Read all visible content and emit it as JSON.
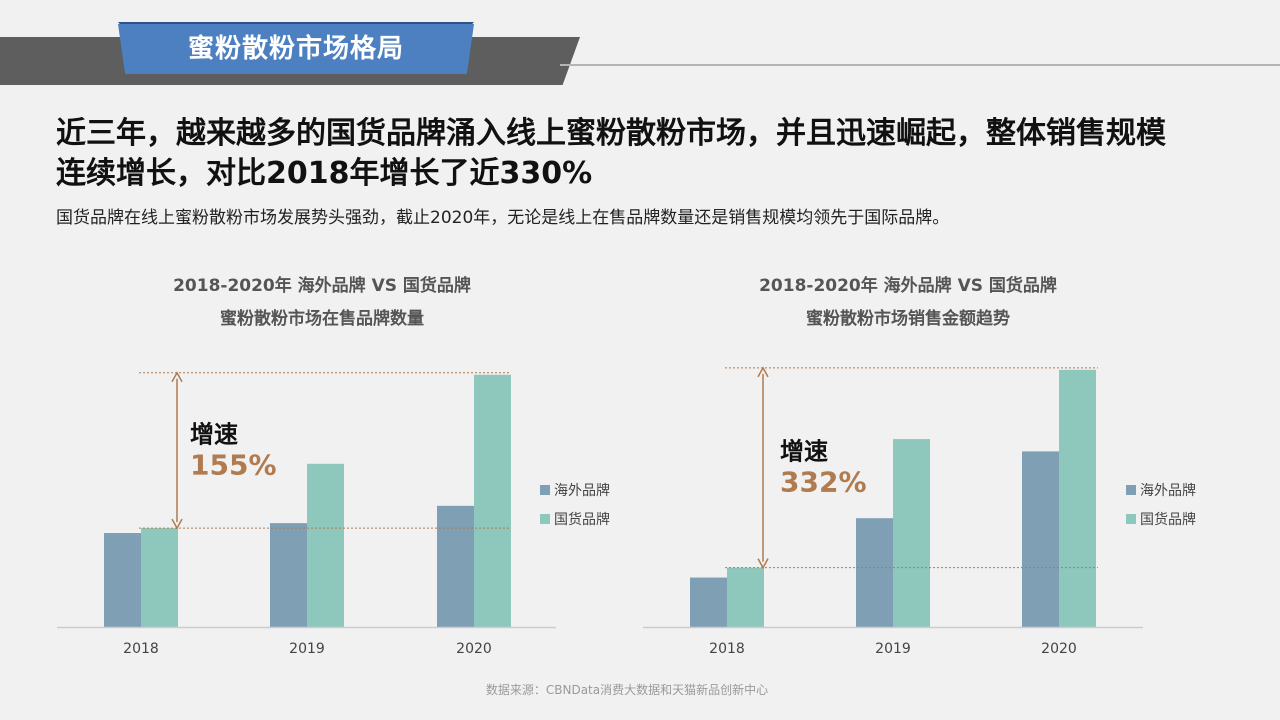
{
  "header": {
    "section_title": "蜜粉散粉市场格局"
  },
  "headline": {
    "line1": "近三年，越来越多的国货品牌涌入线上蜜粉散粉市场，并且迅速崛起，整体销售规模",
    "line2": "连续增长，对比2018年增长了近330%"
  },
  "subline": "国货品牌在线上蜜粉散粉市场发展势头强劲，截止2020年，无论是线上在售品牌数量还是销售规模均领先于国际品牌。",
  "footer": "数据来源：CBNData消费大数据和天猫新品创新中心",
  "colors": {
    "overseas": "#7f9fb4",
    "domestic": "#8ec8bd",
    "accent": "#b07b4f",
    "axis": "#cccccc",
    "text_dark": "#555555"
  },
  "chart_data": [
    {
      "type": "bar",
      "title_line1": "2018-2020年 海外品牌 VS 国货品牌",
      "title_line2": "蜜粉散粉市场在售品牌数量",
      "categories": [
        "2018",
        "2019",
        "2020"
      ],
      "series": [
        {
          "name": "海外品牌",
          "values": [
            38,
            42,
            49
          ]
        },
        {
          "name": "国货品牌",
          "values": [
            40,
            66,
            102
          ]
        }
      ],
      "ylim": [
        0,
        110
      ],
      "annotation": {
        "label": "增速",
        "value": "155%"
      },
      "legend_position": "right"
    },
    {
      "type": "bar",
      "title_line1": "2018-2020年 海外品牌 VS 国货品牌",
      "title_line2": "蜜粉散粉市场销售金额趋势",
      "categories": [
        "2018",
        "2019",
        "2020"
      ],
      "series": [
        {
          "name": "海外品牌",
          "values": [
            20,
            44,
            71
          ]
        },
        {
          "name": "国货品牌",
          "values": [
            24,
            76,
            104
          ]
        }
      ],
      "ylim": [
        0,
        110
      ],
      "annotation": {
        "label": "增速",
        "value": "332%"
      },
      "legend_position": "right"
    }
  ]
}
